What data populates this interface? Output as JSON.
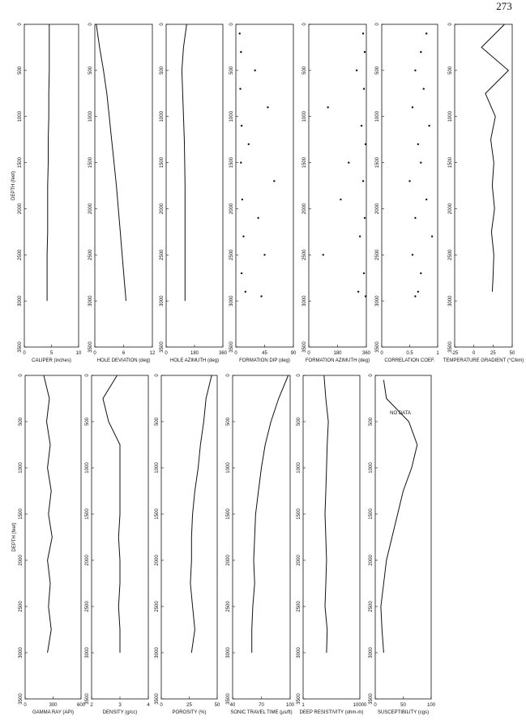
{
  "page_number": "273",
  "chart_data": [
    {
      "type": "line",
      "xlabel": "CALIPER (inches)",
      "ylabel": "DEPTH (feet)",
      "color": "#111",
      "xlim": [
        0,
        10
      ],
      "xticks": [
        0,
        5,
        10
      ],
      "ylim": [
        0,
        3500
      ],
      "yticks": [
        0,
        500,
        1000,
        1500,
        2000,
        2500,
        3000,
        3500
      ],
      "y": [
        0,
        250,
        500,
        750,
        1000,
        1250,
        1500,
        1750,
        2000,
        2250,
        2500,
        2750,
        3000
      ],
      "values": [
        4.6,
        4.6,
        4.6,
        4.5,
        4.5,
        4.4,
        4.4,
        4.3,
        4.3,
        4.3,
        4.2,
        4.2,
        4.2
      ]
    },
    {
      "type": "line",
      "xlabel": "HOLE DEVIATION (deg)",
      "color": "#111",
      "xlim": [
        0,
        12
      ],
      "xticks": [
        0,
        6,
        12
      ],
      "ylim": [
        0,
        3500
      ],
      "yticks": [
        0,
        500,
        1000,
        1500,
        2000,
        2500,
        3000,
        3500
      ],
      "y": [
        0,
        250,
        500,
        750,
        1000,
        1250,
        1500,
        1750,
        2000,
        2250,
        2500,
        2750,
        3000
      ],
      "values": [
        0.3,
        1.0,
        1.8,
        2.5,
        3.0,
        3.5,
        4.0,
        4.5,
        4.9,
        5.3,
        5.7,
        6.1,
        6.5
      ]
    },
    {
      "type": "line",
      "xlabel": "HOLE AZIMUTH (deg)",
      "color": "#111",
      "xlim": [
        0,
        360
      ],
      "xticks": [
        0,
        180,
        360
      ],
      "ylim": [
        0,
        3500
      ],
      "yticks": [
        0,
        500,
        1000,
        1500,
        2000,
        2500,
        3000,
        3500
      ],
      "y": [
        0,
        250,
        500,
        750,
        1000,
        1250,
        1500,
        1750,
        2000,
        2250,
        2500,
        2750,
        3000
      ],
      "values": [
        130,
        110,
        100,
        105,
        110,
        115,
        118,
        120,
        120,
        120,
        120,
        120,
        120
      ]
    },
    {
      "type": "scatter",
      "xlabel": "FORMATION DIP (deg)",
      "color": "#111",
      "xlim": [
        0,
        90
      ],
      "xticks": [
        0,
        45,
        90
      ],
      "ylim": [
        0,
        3500
      ],
      "yticks": [
        0,
        500,
        1000,
        1500,
        2000,
        2500,
        3000,
        3500
      ],
      "y": [
        100,
        300,
        500,
        700,
        900,
        1100,
        1300,
        1500,
        1700,
        1900,
        2100,
        2300,
        2500,
        2700,
        2900,
        2950
      ],
      "values": [
        6,
        8,
        30,
        7,
        50,
        9,
        20,
        8,
        60,
        10,
        35,
        12,
        45,
        9,
        15,
        40
      ]
    },
    {
      "type": "scatter",
      "xlabel": "FORMATION AZIMUTH (deg)",
      "color": "#111",
      "xlim": [
        0,
        360
      ],
      "xticks": [
        0,
        180,
        360
      ],
      "ylim": [
        0,
        3500
      ],
      "yticks": [
        0,
        500,
        1000,
        1500,
        2000,
        2500,
        3000,
        3500
      ],
      "y": [
        100,
        300,
        500,
        700,
        900,
        1100,
        1300,
        1500,
        1700,
        1900,
        2100,
        2300,
        2500,
        2700,
        2900,
        2950
      ],
      "values": [
        340,
        350,
        300,
        345,
        120,
        330,
        355,
        250,
        340,
        200,
        350,
        320,
        90,
        345,
        310,
        355
      ]
    },
    {
      "type": "scatter",
      "xlabel": "CORRELATION COEF.",
      "color": "#111",
      "xlim": [
        0,
        1
      ],
      "xticks": [
        0,
        0.5,
        1
      ],
      "ylim": [
        0,
        3500
      ],
      "yticks": [
        0,
        500,
        1000,
        1500,
        2000,
        2500,
        3000,
        3500
      ],
      "y": [
        100,
        300,
        500,
        700,
        900,
        1100,
        1300,
        1500,
        1700,
        1900,
        2100,
        2300,
        2500,
        2700,
        2900,
        2950
      ],
      "values": [
        0.8,
        0.7,
        0.6,
        0.75,
        0.55,
        0.85,
        0.65,
        0.7,
        0.5,
        0.8,
        0.6,
        0.9,
        0.55,
        0.7,
        0.65,
        0.6
      ]
    },
    {
      "type": "line",
      "xlabel": "TEMPERATURE GRADIENT (°C/km)",
      "color": "#111",
      "xlim": [
        -25,
        50
      ],
      "xticks": [
        -25,
        0,
        25,
        50
      ],
      "ylim": [
        0,
        3500
      ],
      "yticks": [
        0,
        500,
        1000,
        1500,
        2000,
        2500,
        3000,
        3500
      ],
      "y": [
        0,
        250,
        500,
        750,
        1000,
        1250,
        1500,
        1750,
        2000,
        2250,
        2500,
        2750,
        2900
      ],
      "values": [
        40,
        10,
        45,
        15,
        28,
        22,
        26,
        24,
        27,
        23,
        26,
        25,
        24
      ]
    },
    {
      "type": "line",
      "xlabel": "GAMMA RAY (API)",
      "ylabel": "DEPTH (feet)",
      "color": "#111",
      "xlim": [
        0,
        600
      ],
      "xticks": [
        0,
        300,
        600
      ],
      "ylim": [
        0,
        3500
      ],
      "yticks": [
        0,
        500,
        1000,
        1500,
        2000,
        2500,
        3000,
        3500
      ],
      "y": [
        0,
        250,
        500,
        750,
        1000,
        1250,
        1500,
        1750,
        2000,
        2250,
        2500,
        2750,
        3000
      ],
      "values": [
        200,
        260,
        230,
        270,
        240,
        280,
        250,
        290,
        240,
        270,
        250,
        280,
        240
      ]
    },
    {
      "type": "line",
      "xlabel": "DENSITY (g/cc)",
      "color": "#111",
      "xlim": [
        2,
        4
      ],
      "xticks": [
        2,
        3,
        4
      ],
      "ylim": [
        0,
        3500
      ],
      "yticks": [
        0,
        500,
        1000,
        1500,
        2000,
        2500,
        3000,
        3500
      ],
      "y": [
        0,
        250,
        500,
        750,
        1000,
        1250,
        1500,
        1750,
        2000,
        2250,
        2500,
        2750,
        3000
      ],
      "values": [
        2.9,
        2.4,
        2.6,
        3.0,
        3.0,
        3.0,
        3.0,
        2.95,
        3.0,
        3.0,
        2.95,
        3.0,
        3.0
      ]
    },
    {
      "type": "line",
      "xlabel": "POROSITY (%)",
      "color": "#111",
      "xlim": [
        0,
        50
      ],
      "xticks": [
        0,
        25,
        50
      ],
      "ylim": [
        0,
        3500
      ],
      "yticks": [
        0,
        500,
        1000,
        1500,
        2000,
        2500,
        3000,
        3500
      ],
      "y": [
        0,
        250,
        500,
        750,
        1000,
        1250,
        1500,
        1750,
        2000,
        2250,
        2500,
        2750,
        3000
      ],
      "values": [
        45,
        40,
        38,
        35,
        33,
        30,
        28,
        27,
        27,
        26,
        28,
        30,
        27
      ]
    },
    {
      "type": "line",
      "xlabel": "SONIC TRAVEL TIME (µs/ft)",
      "color": "#111",
      "xlim": [
        40,
        100
      ],
      "xticks": [
        40,
        70,
        100
      ],
      "ylim": [
        0,
        3500
      ],
      "yticks": [
        0,
        500,
        1000,
        1500,
        2000,
        2500,
        3000,
        3500
      ],
      "y": [
        0,
        250,
        500,
        750,
        1000,
        1250,
        1500,
        1750,
        2000,
        2250,
        2500,
        2750,
        3000
      ],
      "values": [
        98,
        88,
        80,
        74,
        70,
        67,
        64,
        63,
        62,
        63,
        61,
        60,
        60
      ]
    },
    {
      "type": "line",
      "xlabel": "DEEP RESISTIVITY (ohm-m)",
      "xscale": "log",
      "color": "#111",
      "xlim": [
        1,
        10000
      ],
      "xticks": [
        1,
        10000
      ],
      "ylim": [
        0,
        3500
      ],
      "yticks": [
        0,
        500,
        1000,
        1500,
        2000,
        2500,
        3000,
        3500
      ],
      "y": [
        0,
        250,
        500,
        750,
        1000,
        1250,
        1500,
        1750,
        2000,
        2250,
        2500,
        2750,
        3000
      ],
      "values": [
        30,
        40,
        60,
        50,
        45,
        40,
        35,
        40,
        45,
        40,
        35,
        50,
        45
      ]
    },
    {
      "type": "line",
      "xlabel": "SUSCEPTIBILITY (cgs)",
      "annotation": "NO DATA",
      "color": "#111",
      "xlim": [
        0,
        100
      ],
      "xticks": [
        0,
        50,
        100
      ],
      "ylim": [
        0,
        3500
      ],
      "yticks": [
        0,
        500,
        1000,
        1500,
        2000,
        2500,
        3000,
        3500
      ],
      "y": [
        50,
        250,
        500,
        750,
        1000,
        1250,
        1500,
        1750,
        2000,
        2250,
        2500,
        2750,
        3000
      ],
      "values": [
        15,
        20,
        60,
        75,
        65,
        50,
        40,
        30,
        20,
        15,
        10,
        12,
        15
      ]
    }
  ]
}
